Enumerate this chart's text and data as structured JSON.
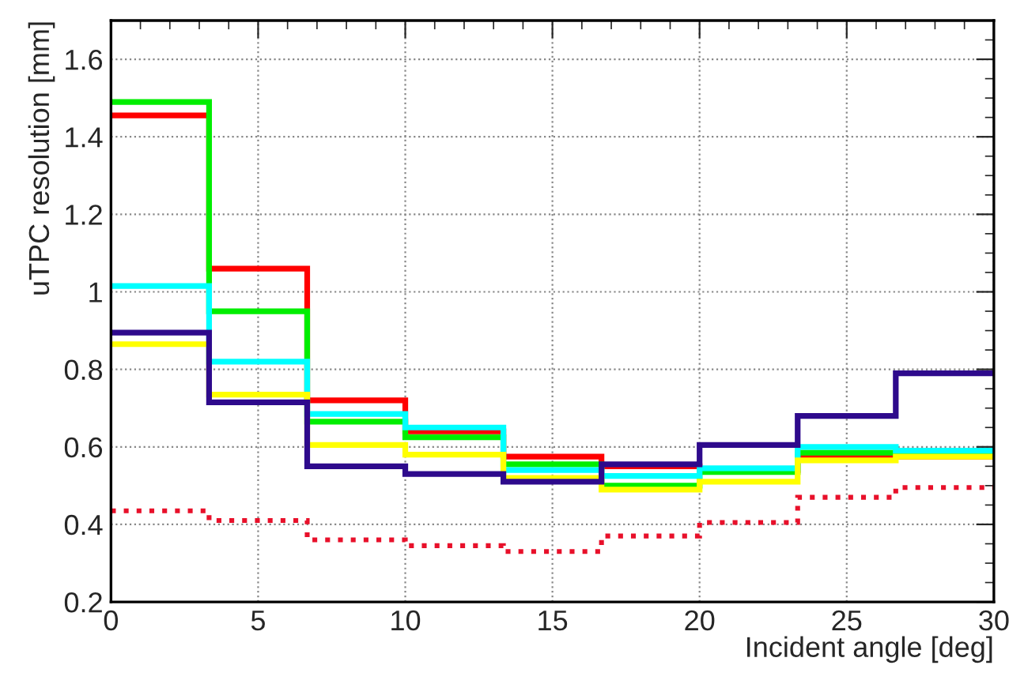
{
  "chart_data": {
    "type": "histogram",
    "xlabel": "Incident angle [deg]",
    "ylabel": "uTPC resolution [mm]",
    "bins": [
      0,
      3.333,
      6.667,
      10,
      13.333,
      16.667,
      20,
      23.333,
      26.667,
      30
    ],
    "series": [
      {
        "color": "#ff0000",
        "values": [
          1.455,
          1.06,
          0.72,
          0.64,
          0.575,
          0.55,
          0.54,
          0.575,
          0.575
        ]
      },
      {
        "color": "#00ee00",
        "values": [
          1.49,
          0.95,
          0.665,
          0.625,
          0.555,
          0.5,
          0.535,
          0.585,
          0.58
        ]
      },
      {
        "color": "#00ffff",
        "values": [
          1.015,
          0.82,
          0.685,
          0.65,
          0.54,
          0.525,
          0.545,
          0.6,
          0.59
        ]
      },
      {
        "color": "#ffff00",
        "values": [
          0.865,
          0.735,
          0.605,
          0.58,
          0.52,
          0.49,
          0.51,
          0.565,
          0.575
        ]
      },
      {
        "color": "#2e0a8c",
        "values": [
          0.895,
          0.715,
          0.55,
          0.53,
          0.51,
          0.555,
          0.605,
          0.68,
          0.79
        ]
      },
      {
        "color": "#e8102a",
        "line_style": "dotted",
        "values": [
          0.435,
          0.41,
          0.36,
          0.345,
          0.33,
          0.37,
          0.405,
          0.47,
          0.495
        ]
      }
    ],
    "xlim": [
      0,
      30
    ],
    "xticks": [
      0,
      5,
      10,
      15,
      20,
      25,
      30
    ],
    "ylim": [
      0.2,
      1.7
    ],
    "yticks": [
      {
        "value": 0.2,
        "label": "0.2"
      },
      {
        "value": 0.4,
        "label": "0.4"
      },
      {
        "value": 0.6,
        "label": "0.6"
      },
      {
        "value": 0.8,
        "label": "0.8"
      },
      {
        "value": 1.0,
        "label": "1"
      },
      {
        "value": 1.2,
        "label": "1.2"
      },
      {
        "value": 1.4,
        "label": "1.4"
      },
      {
        "value": 1.6,
        "label": "1.6"
      }
    ],
    "grid": true,
    "legend": false
  }
}
